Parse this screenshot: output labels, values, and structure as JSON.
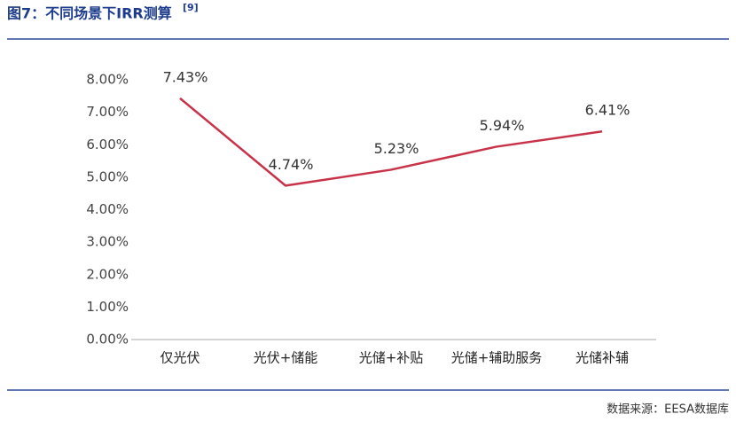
{
  "chart_data": {
    "type": "line",
    "title": "图7：不同场景下IRR测算",
    "title_superscript": "[9]",
    "source": "数据来源：EESA数据库",
    "categories": [
      "仅光伏",
      "光伏+储能",
      "光储+补贴",
      "光储+辅助服务",
      "光储补辅"
    ],
    "values": [
      7.43,
      4.74,
      5.23,
      5.94,
      6.41
    ],
    "value_labels": [
      "7.43%",
      "4.74%",
      "5.23%",
      "5.94%",
      "6.41%"
    ],
    "color": "#c8334a",
    "ylim": [
      0,
      8
    ],
    "yticks": [
      {
        "value": 0,
        "label": "0.00%"
      },
      {
        "value": 1,
        "label": "1.00%"
      },
      {
        "value": 2,
        "label": "2.00%"
      },
      {
        "value": 3,
        "label": "3.00%"
      },
      {
        "value": 4,
        "label": "4.00%"
      },
      {
        "value": 5,
        "label": "5.00%"
      },
      {
        "value": 6,
        "label": "6.00%"
      },
      {
        "value": 7,
        "label": "7.00%"
      },
      {
        "value": 8,
        "label": "8.00%"
      }
    ],
    "grid": false
  }
}
